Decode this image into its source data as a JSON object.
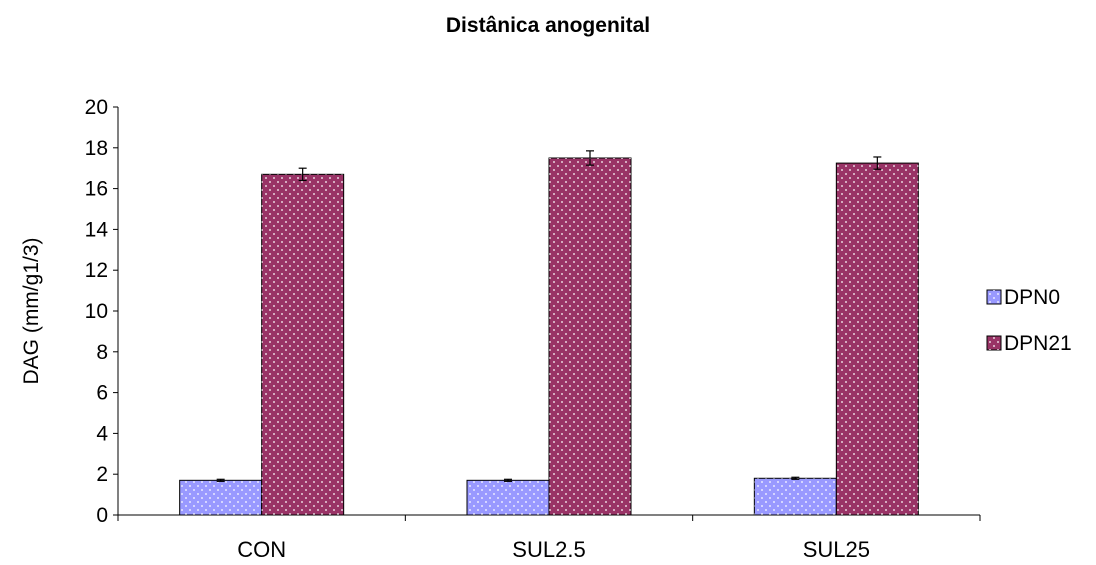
{
  "chart_data": {
    "type": "bar",
    "title": "Distânica anogenital",
    "xlabel": "",
    "ylabel": "DAG (mm/g1/3)",
    "ylim": [
      0,
      20
    ],
    "yticks": [
      "0",
      "2",
      "4",
      "6",
      "8",
      "10",
      "12",
      "14",
      "16",
      "18",
      "20"
    ],
    "categories": [
      "CON",
      "SUL2.5",
      "SUL25"
    ],
    "series": [
      {
        "name": "DPN0",
        "values": [
          1.7,
          1.7,
          1.8
        ],
        "errors": [
          0.05,
          0.05,
          0.05
        ],
        "color": "#9999FF"
      },
      {
        "name": "DPN21",
        "values": [
          16.7,
          17.5,
          17.25
        ],
        "errors": [
          0.3,
          0.35,
          0.3
        ],
        "color": "#993366"
      }
    ],
    "grid": false,
    "legend_position": "right"
  }
}
